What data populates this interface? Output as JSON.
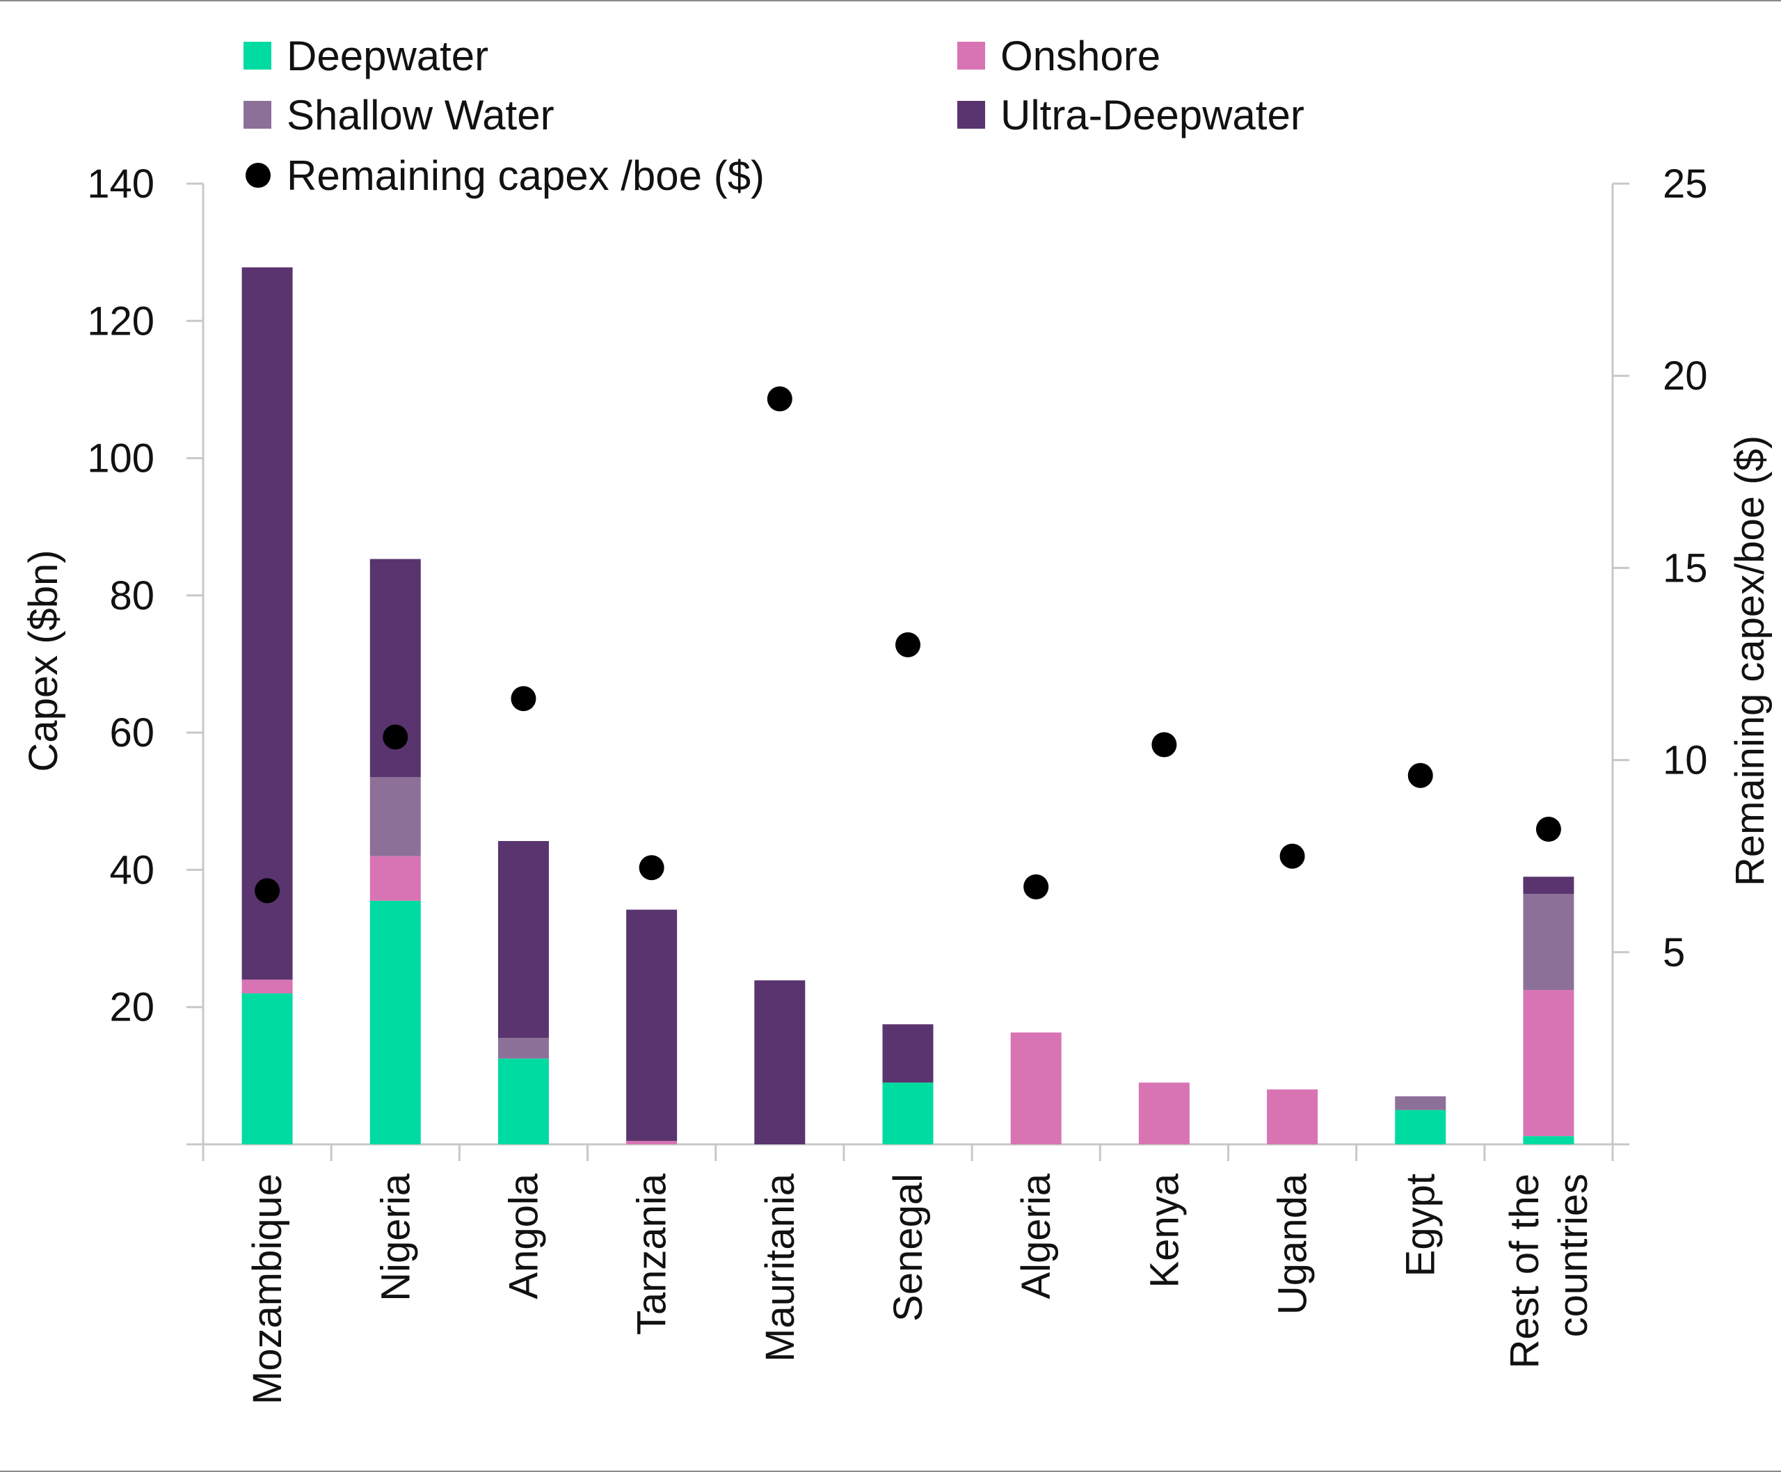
{
  "chart_data": {
    "type": "bar",
    "stacked": true,
    "categories": [
      "Mozambique",
      "Nigeria",
      "Angola",
      "Tanzania",
      "Mauritania",
      "Senegal",
      "Algeria",
      "Kenya",
      "Uganda",
      "Egypt",
      "Rest of the countries"
    ],
    "category_lines": [
      [
        "Mozambique"
      ],
      [
        "Nigeria"
      ],
      [
        "Angola"
      ],
      [
        "Tanzania"
      ],
      [
        "Mauritania"
      ],
      [
        "Senegal"
      ],
      [
        "Algeria"
      ],
      [
        "Kenya"
      ],
      [
        "Uganda"
      ],
      [
        "Egypt"
      ],
      [
        "Rest of the",
        "countries"
      ]
    ],
    "series": [
      {
        "name": "Deepwater",
        "color": "#00dba1",
        "values": [
          22,
          35.5,
          12.5,
          0,
          0,
          9,
          0,
          0,
          0,
          5,
          1.2
        ]
      },
      {
        "name": "Onshore",
        "color": "#d874b4",
        "values": [
          2,
          6.5,
          0,
          0.5,
          0,
          0,
          16.3,
          9,
          8,
          0,
          21.3
        ]
      },
      {
        "name": "Shallow Water",
        "color": "#8d7098",
        "values": [
          0,
          11.5,
          3,
          0,
          0,
          0,
          0,
          0,
          0,
          2,
          14
        ]
      },
      {
        "name": "Ultra-Deepwater",
        "color": "#5a346e",
        "values": [
          103.8,
          31.8,
          28.7,
          33.7,
          23.9,
          8.5,
          0,
          0,
          0,
          0,
          2.5
        ]
      }
    ],
    "scatter": {
      "name": "Remaining capex /boe ($)",
      "color": "#000000",
      "values": [
        6.6,
        10.6,
        11.6,
        7.2,
        19.4,
        13.0,
        6.7,
        10.4,
        7.5,
        9.6,
        8.2
      ]
    },
    "ylabel": "Capex ($bn)",
    "ylim": [
      0,
      140
    ],
    "yticks": [
      "20",
      "40",
      "60",
      "80",
      "100",
      "120",
      "140"
    ],
    "y2label": "Remaining capex/boe ($)",
    "y2lim": [
      0,
      25
    ],
    "y2ticks": [
      "5",
      "10",
      "15",
      "20",
      "25"
    ],
    "legend": {
      "placement": "top",
      "items": [
        {
          "label": "Deepwater",
          "kind": "square",
          "color": "#00dba1"
        },
        {
          "label": "Onshore",
          "kind": "square",
          "color": "#d874b4"
        },
        {
          "label": "Shallow Water",
          "kind": "square",
          "color": "#8d7098"
        },
        {
          "label": "Ultra-Deepwater",
          "kind": "square",
          "color": "#5a346e"
        },
        {
          "label": "Remaining capex /boe ($)",
          "kind": "dot",
          "color": "#000000"
        }
      ]
    },
    "grid": false
  }
}
